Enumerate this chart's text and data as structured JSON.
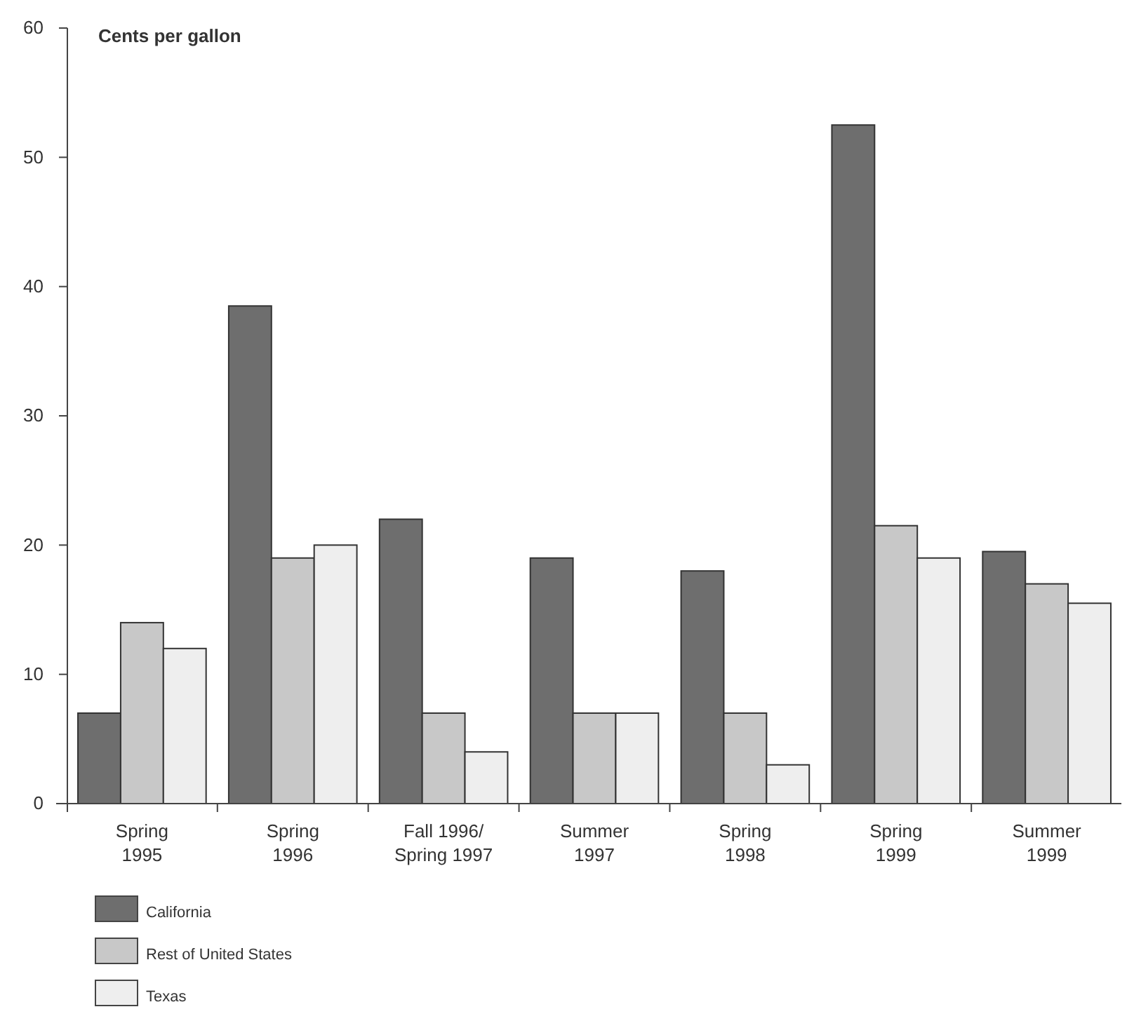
{
  "chart_data": {
    "type": "bar",
    "ylabel": "Cents per gallon",
    "categories": [
      "Spring\n1995",
      "Spring\n1996",
      "Fall 1996/\nSpring 1997",
      "Summer\n1997",
      "Spring\n1998",
      "Spring\n1999",
      "Summer\n1999"
    ],
    "series": [
      {
        "name": "California",
        "color": "#6e6e6e",
        "values": [
          7,
          38.5,
          22,
          19,
          18,
          52.5,
          19.5
        ]
      },
      {
        "name": "Rest of United States",
        "color": "#c8c8c8",
        "values": [
          14,
          19,
          7,
          7,
          7,
          21.5,
          17
        ]
      },
      {
        "name": "Texas",
        "color": "#eeeeee",
        "values": [
          12,
          20,
          4,
          7,
          3,
          19,
          15.5
        ]
      }
    ],
    "ylim": [
      0,
      60
    ],
    "yticks": [
      0,
      10,
      20,
      30,
      40,
      50,
      60
    ],
    "grid": false,
    "legend": "bottom left"
  }
}
